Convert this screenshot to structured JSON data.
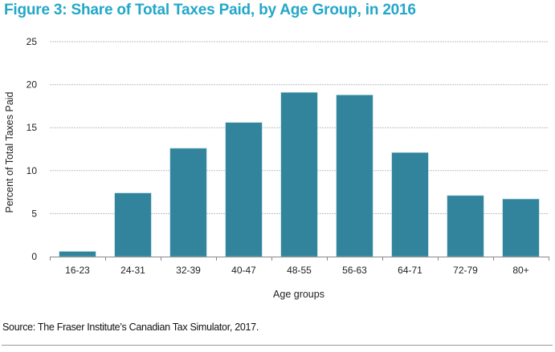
{
  "chart_data": {
    "type": "bar",
    "title": "Figure 3: Share of Total Taxes Paid, by Age Group, in 2016",
    "xlabel": "Age groups",
    "ylabel": "Percent of Total Taxes Paid",
    "categories": [
      "16-23",
      "24-31",
      "32-39",
      "40-47",
      "48-55",
      "56-63",
      "64-71",
      "72-79",
      "80+"
    ],
    "values": [
      0.6,
      7.4,
      12.6,
      15.6,
      19.1,
      18.8,
      12.1,
      7.1,
      6.7
    ],
    "ylim": [
      0,
      25
    ],
    "yticks": [
      0,
      5,
      10,
      15,
      20,
      25
    ],
    "grid": true,
    "legend": "none",
    "bar_color": "#31849b",
    "gridline_color": "#bfbfbf"
  },
  "source": "Source: The Fraser Institute’s Canadian Tax Simulator, 2017."
}
